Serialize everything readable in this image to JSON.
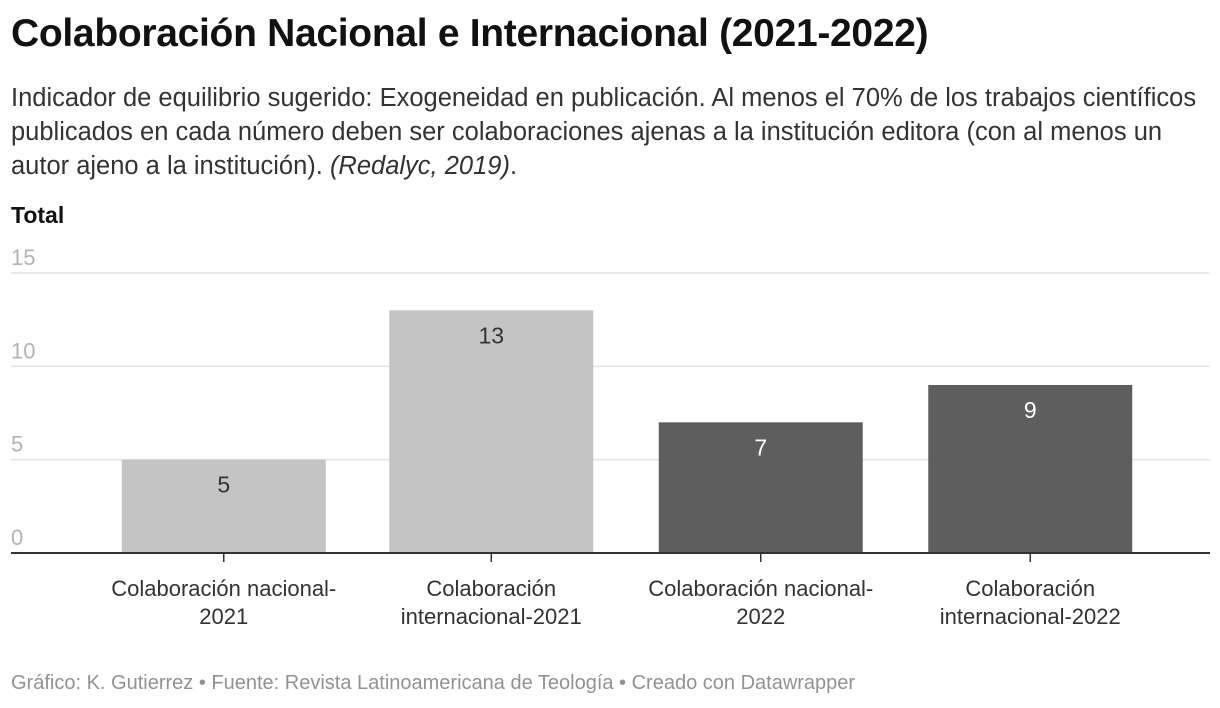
{
  "title": "Colaboración Nacional e Internacional (2021-2022)",
  "subtitle": {
    "text": "Indicador de equilibrio sugerido: Exogeneidad en publicación. Al menos el 70% de los trabajos científicos publicados en cada número deben ser colaboraciones ajenas a la institución editora (con al menos un autor ajeno a la institución). ",
    "citation": "(Redalyc, 2019)",
    "end": "."
  },
  "footer": "Gráfico: K. Gutierrez • Fuente: Revista Latinoamericana de Teología • Creado con Datawrapper",
  "chart_data": {
    "type": "bar",
    "title": "Colaboración Nacional e Internacional (2021-2022)",
    "ylabel": "Total",
    "xlabel": "",
    "ylim": [
      0,
      15
    ],
    "yticks": [
      "0",
      "5",
      "10",
      "15"
    ],
    "grid": true,
    "categories": [
      [
        "Colaboración nacional-",
        "2021"
      ],
      [
        "Colaboración",
        "internacional-2021"
      ],
      [
        "Colaboración nacional-",
        "2022"
      ],
      [
        "Colaboración",
        "internacional-2022"
      ]
    ],
    "values": [
      5,
      13,
      7,
      9
    ],
    "data_labels": [
      "5",
      "13",
      "7",
      "9"
    ],
    "colors": [
      "#c4c4c4",
      "#c4c4c4",
      "#5e5e5e",
      "#5e5e5e"
    ],
    "label_colors": [
      "#333333",
      "#333333",
      "#ffffff",
      "#ffffff"
    ]
  }
}
